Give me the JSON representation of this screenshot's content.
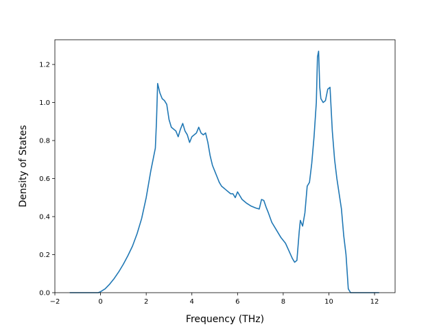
{
  "chart_data": {
    "type": "line",
    "title": "",
    "xlabel": "Frequency (THz)",
    "ylabel": "Density of States",
    "xlim": [
      -2.0,
      12.9
    ],
    "ylim": [
      0.0,
      1.33
    ],
    "grid": false,
    "xticks": [
      -2,
      0,
      2,
      4,
      6,
      8,
      10,
      12
    ],
    "xtick_labels": [
      "−2",
      "0",
      "2",
      "4",
      "6",
      "8",
      "10",
      "12"
    ],
    "yticks": [
      0.0,
      0.2,
      0.4,
      0.6,
      0.8,
      1.0,
      1.2
    ],
    "ytick_labels": [
      "0.0",
      "0.2",
      "0.4",
      "0.6",
      "0.8",
      "1.0",
      "1.2"
    ],
    "series": [
      {
        "color": "#1f77b4",
        "x": [
          -1.35,
          -0.5,
          -0.1,
          0.0,
          0.2,
          0.4,
          0.6,
          0.8,
          1.0,
          1.2,
          1.4,
          1.6,
          1.8,
          2.0,
          2.2,
          2.3,
          2.4,
          2.45,
          2.5,
          2.6,
          2.7,
          2.8,
          2.9,
          3.0,
          3.1,
          3.2,
          3.3,
          3.4,
          3.5,
          3.6,
          3.7,
          3.8,
          3.9,
          4.0,
          4.1,
          4.2,
          4.3,
          4.4,
          4.5,
          4.6,
          4.7,
          4.8,
          4.9,
          5.0,
          5.1,
          5.2,
          5.3,
          5.4,
          5.5,
          5.6,
          5.7,
          5.8,
          5.9,
          6.0,
          6.1,
          6.2,
          6.4,
          6.6,
          6.8,
          6.95,
          7.05,
          7.15,
          7.25,
          7.35,
          7.5,
          7.7,
          7.9,
          8.1,
          8.25,
          8.4,
          8.5,
          8.6,
          8.7,
          8.75,
          8.85,
          8.95,
          9.05,
          9.15,
          9.25,
          9.35,
          9.45,
          9.5,
          9.55,
          9.6,
          9.65,
          9.75,
          9.85,
          9.95,
          10.05,
          10.15,
          10.25,
          10.35,
          10.45,
          10.55,
          10.65,
          10.75,
          10.85,
          10.95,
          11.05,
          11.1,
          11.3,
          12.0,
          12.2
        ],
        "y": [
          0.0,
          0.0,
          0.0,
          0.005,
          0.02,
          0.045,
          0.075,
          0.11,
          0.15,
          0.195,
          0.245,
          0.31,
          0.39,
          0.5,
          0.64,
          0.7,
          0.76,
          0.9,
          1.1,
          1.05,
          1.02,
          1.01,
          0.99,
          0.91,
          0.87,
          0.86,
          0.85,
          0.82,
          0.86,
          0.89,
          0.85,
          0.83,
          0.79,
          0.82,
          0.83,
          0.84,
          0.87,
          0.84,
          0.83,
          0.84,
          0.79,
          0.72,
          0.67,
          0.64,
          0.61,
          0.58,
          0.56,
          0.55,
          0.54,
          0.53,
          0.52,
          0.52,
          0.5,
          0.53,
          0.51,
          0.49,
          0.47,
          0.455,
          0.445,
          0.44,
          0.49,
          0.485,
          0.45,
          0.42,
          0.37,
          0.33,
          0.29,
          0.26,
          0.22,
          0.18,
          0.16,
          0.17,
          0.32,
          0.38,
          0.35,
          0.42,
          0.56,
          0.58,
          0.68,
          0.82,
          1.0,
          1.24,
          1.27,
          1.08,
          1.02,
          1.0,
          1.01,
          1.07,
          1.08,
          0.85,
          0.7,
          0.6,
          0.52,
          0.44,
          0.3,
          0.2,
          0.02,
          0.0,
          0.0,
          0.0,
          0.0,
          0.0,
          0.0
        ]
      }
    ]
  }
}
